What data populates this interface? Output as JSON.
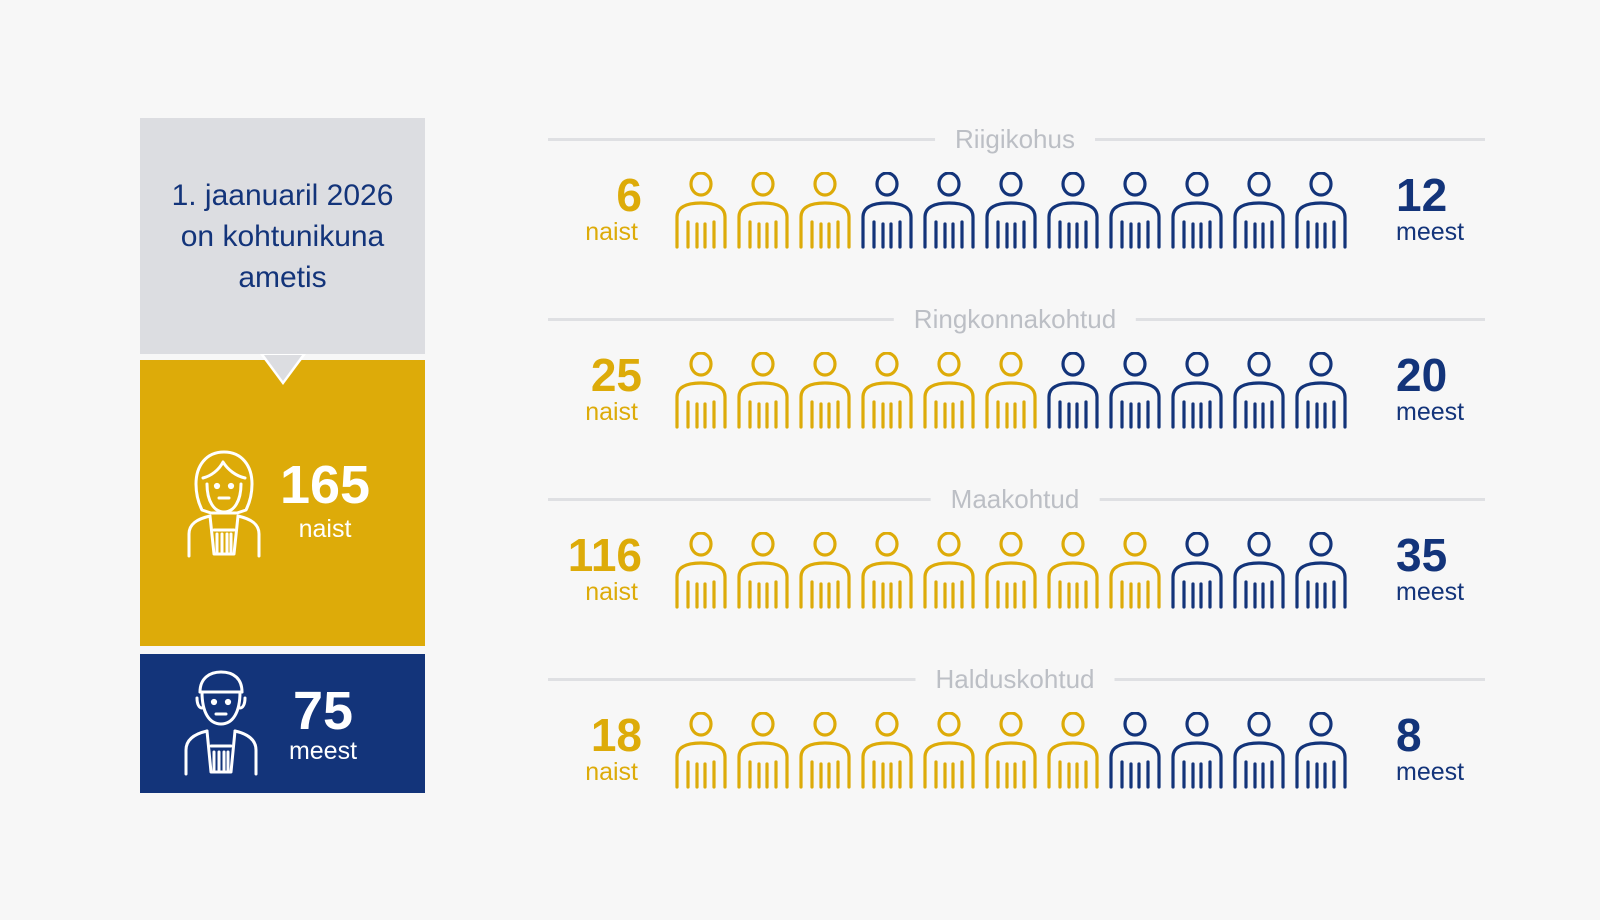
{
  "colors": {
    "women": "#ddab09",
    "men": "#13347a",
    "summary_header_bg": "#dcdde1",
    "divider": "#dfe0e3",
    "court_title": "#bcbfc5",
    "background": "#f7f7f7"
  },
  "summary": {
    "header_text": "1. jaanuaril 2026\non kohtunikuna\nametis",
    "women_icon": "female-judge-icon",
    "men_icon": "male-judge-icon",
    "women_count": "165",
    "women_label": "naist",
    "men_count": "75",
    "men_label": "meest"
  },
  "chart_data": {
    "type": "pictogram",
    "icon_counts": {
      "note": "each row shows 11 person icons split between women and men",
      "per_row": 11
    },
    "series": [
      {
        "name": "naist",
        "values": [
          6,
          25,
          116,
          18
        ]
      },
      {
        "name": "meest",
        "values": [
          12,
          20,
          35,
          8
        ]
      }
    ],
    "categories": [
      "Riigikohus",
      "Ringkonnakohtud",
      "Maakohtud",
      "Halduskohtud"
    ],
    "rows": [
      {
        "title": "Riigikohus",
        "women": 6,
        "men": 12,
        "women_count_text": "6",
        "men_count_text": "12",
        "women_label": "naist",
        "men_label": "meest",
        "women_icons": 3,
        "men_icons": 8
      },
      {
        "title": "Ringkonnakohtud",
        "women": 25,
        "men": 20,
        "women_count_text": "25",
        "men_count_text": "20",
        "women_label": "naist",
        "men_label": "meest",
        "women_icons": 6,
        "men_icons": 5
      },
      {
        "title": "Maakohtud",
        "women": 116,
        "men": 35,
        "women_count_text": "116",
        "men_count_text": "35",
        "women_label": "naist",
        "men_label": "meest",
        "women_icons": 8,
        "men_icons": 3
      },
      {
        "title": "Halduskohtud",
        "women": 18,
        "men": 8,
        "women_count_text": "18",
        "men_count_text": "8",
        "women_label": "naist",
        "men_label": "meest",
        "women_icons": 7,
        "men_icons": 4
      }
    ],
    "title": "",
    "xlabel": "",
    "ylabel": "",
    "legend": "none",
    "grid": false
  }
}
